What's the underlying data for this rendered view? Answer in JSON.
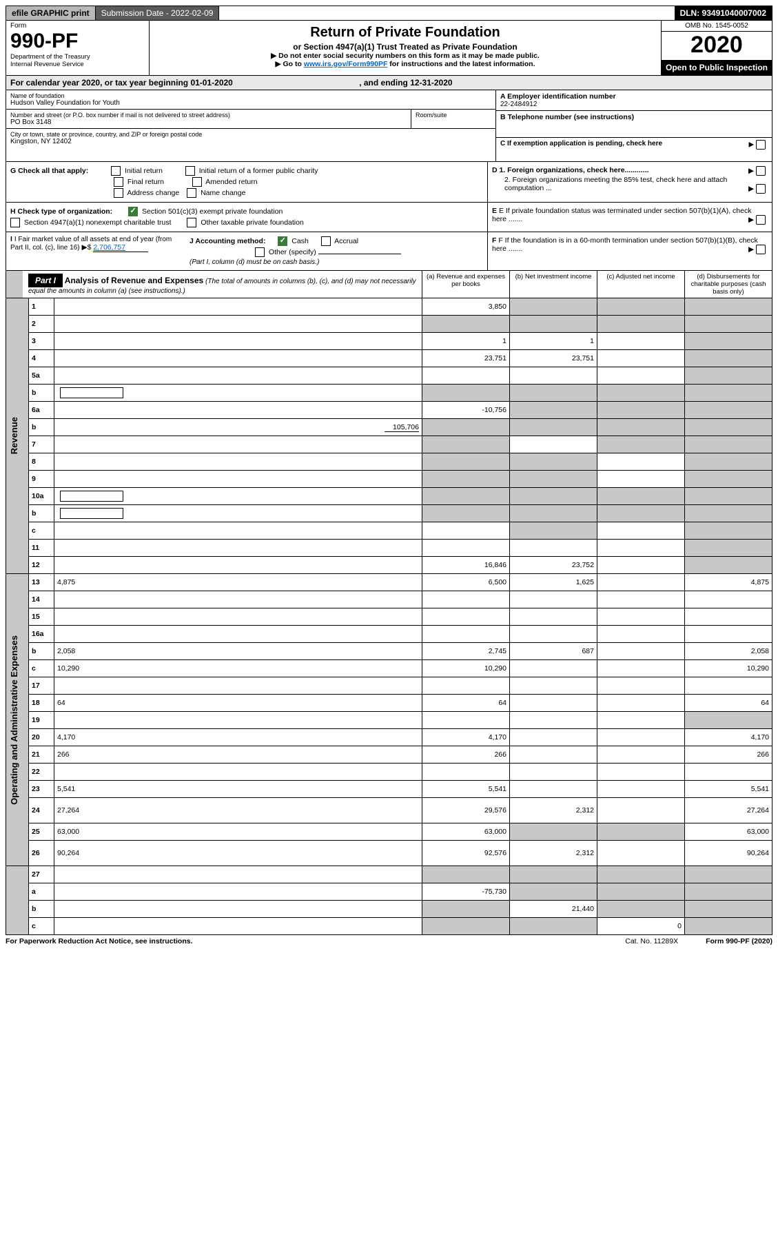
{
  "colors": {
    "black": "#000000",
    "white": "#ffffff",
    "grey_light": "#e8e8e8",
    "grey_mid": "#c8c8c8",
    "grey_dark": "#5a5a5a",
    "topbar_grey": "#b8b8b8",
    "link": "#0066cc",
    "check_green": "#3a7a3a"
  },
  "topbar": {
    "efile": "efile GRAPHIC print",
    "submission_label": "Submission Date - 2022-02-09",
    "dln": "DLN: 93491040007002"
  },
  "header": {
    "form_word": "Form",
    "form_number": "990-PF",
    "dept1": "Department of the Treasury",
    "dept2": "Internal Revenue Service",
    "title": "Return of Private Foundation",
    "subtitle": "or Section 4947(a)(1) Trust Treated as Private Foundation",
    "note1": "▶ Do not enter social security numbers on this form as it may be made public.",
    "note2_pre": "▶ Go to ",
    "note2_link": "www.irs.gov/Form990PF",
    "note2_post": " for instructions and the latest information.",
    "omb": "OMB No. 1545-0052",
    "year": "2020",
    "open": "Open to Public Inspection"
  },
  "calyear": {
    "text_pre": "For calendar year 2020, or tax year beginning ",
    "begin": "01-01-2020",
    "mid": " , and ending ",
    "end": "12-31-2020"
  },
  "info": {
    "name_label": "Name of foundation",
    "name": "Hudson Valley Foundation for Youth",
    "addr_label": "Number and street (or P.O. box number if mail is not delivered to street address)",
    "addr": "PO Box 3148",
    "room_label": "Room/suite",
    "city_label": "City or town, state or province, country, and ZIP or foreign postal code",
    "city": "Kingston, NY  12402",
    "a_label": "A Employer identification number",
    "a_val": "22-2484912",
    "b_label": "B Telephone number (see instructions)",
    "c_label": "C If exemption application is pending, check here",
    "d1": "D 1. Foreign organizations, check here............",
    "d2": "2. Foreign organizations meeting the 85% test, check here and attach computation ...",
    "e": "E If private foundation status was terminated under section 507(b)(1)(A), check here .......",
    "f": "F If the foundation is in a 60-month termination under section 507(b)(1)(B), check here .......",
    "g_label": "G Check all that apply:",
    "g_opts": [
      "Initial return",
      "Initial return of a former public charity",
      "Final return",
      "Amended return",
      "Address change",
      "Name change"
    ],
    "h_label": "H Check type of organization:",
    "h_opt1": "Section 501(c)(3) exempt private foundation",
    "h_opt2": "Section 4947(a)(1) nonexempt charitable trust",
    "h_opt3": "Other taxable private foundation",
    "i_label": "I Fair market value of all assets at end of year (from Part II, col. (c), line 16)",
    "i_val": "2,706,757",
    "j_label": "J Accounting method:",
    "j_cash": "Cash",
    "j_accrual": "Accrual",
    "j_other": "Other (specify)",
    "j_note": "(Part I, column (d) must be on cash basis.)"
  },
  "part1": {
    "label": "Part I",
    "title": "Analysis of Revenue and Expenses",
    "note": "(The total of amounts in columns (b), (c), and (d) may not necessarily equal the amounts in column (a) (see instructions).)",
    "col_a": "(a) Revenue and expenses per books",
    "col_b": "(b) Net investment income",
    "col_c": "(c) Adjusted net income",
    "col_d": "(d) Disbursements for charitable purposes (cash basis only)"
  },
  "sections": {
    "revenue": "Revenue",
    "expenses": "Operating and Administrative Expenses"
  },
  "rows": [
    {
      "n": "1",
      "d": "",
      "a": "3,850",
      "b": "",
      "c": "",
      "gb": true,
      "gc": true,
      "gd": true
    },
    {
      "n": "2",
      "d": "",
      "a": "",
      "b": "",
      "c": "",
      "gb": true,
      "gc": true,
      "gd": true,
      "ga": true,
      "html": true
    },
    {
      "n": "3",
      "d": "",
      "a": "1",
      "b": "1",
      "c": "",
      "gd": true
    },
    {
      "n": "4",
      "d": "",
      "a": "23,751",
      "b": "23,751",
      "c": "",
      "gd": true
    },
    {
      "n": "5a",
      "d": "",
      "a": "",
      "b": "",
      "c": "",
      "gd": true
    },
    {
      "n": "b",
      "d": "",
      "a": "",
      "b": "",
      "c": "",
      "ga": true,
      "gb": true,
      "gc": true,
      "gd": true,
      "inline": true
    },
    {
      "n": "6a",
      "d": "",
      "a": "-10,756",
      "b": "",
      "c": "",
      "gb": true,
      "gc": true,
      "gd": true
    },
    {
      "n": "b",
      "d": "",
      "a": "",
      "b": "",
      "c": "",
      "ga": true,
      "gb": true,
      "gc": true,
      "gd": true,
      "extra": "105,706"
    },
    {
      "n": "7",
      "d": "",
      "a": "",
      "b": "",
      "c": "",
      "ga": true,
      "gc": true,
      "gd": true
    },
    {
      "n": "8",
      "d": "",
      "a": "",
      "b": "",
      "c": "",
      "ga": true,
      "gb": true,
      "gd": true
    },
    {
      "n": "9",
      "d": "",
      "a": "",
      "b": "",
      "c": "",
      "ga": true,
      "gb": true,
      "gd": true
    },
    {
      "n": "10a",
      "d": "",
      "a": "",
      "b": "",
      "c": "",
      "ga": true,
      "gb": true,
      "gc": true,
      "gd": true,
      "inline": true
    },
    {
      "n": "b",
      "d": "",
      "a": "",
      "b": "",
      "c": "",
      "ga": true,
      "gb": true,
      "gc": true,
      "gd": true,
      "inline": true
    },
    {
      "n": "c",
      "d": "",
      "a": "",
      "b": "",
      "c": "",
      "gb": true,
      "gd": true
    },
    {
      "n": "11",
      "d": "",
      "a": "",
      "b": "",
      "c": "",
      "gd": true
    },
    {
      "n": "12",
      "d": "",
      "a": "16,846",
      "b": "23,752",
      "c": "",
      "gd": true,
      "html": true
    }
  ],
  "exp_rows": [
    {
      "n": "13",
      "d": "4,875",
      "a": "6,500",
      "b": "1,625",
      "c": ""
    },
    {
      "n": "14",
      "d": "",
      "a": "",
      "b": "",
      "c": ""
    },
    {
      "n": "15",
      "d": "",
      "a": "",
      "b": "",
      "c": ""
    },
    {
      "n": "16a",
      "d": "",
      "a": "",
      "b": "",
      "c": ""
    },
    {
      "n": "b",
      "d": "2,058",
      "a": "2,745",
      "b": "687",
      "c": ""
    },
    {
      "n": "c",
      "d": "10,290",
      "a": "10,290",
      "b": "",
      "c": ""
    },
    {
      "n": "17",
      "d": "",
      "a": "",
      "b": "",
      "c": ""
    },
    {
      "n": "18",
      "d": "64",
      "a": "64",
      "b": "",
      "c": ""
    },
    {
      "n": "19",
      "d": "",
      "a": "",
      "b": "",
      "c": "",
      "gd": true
    },
    {
      "n": "20",
      "d": "4,170",
      "a": "4,170",
      "b": "",
      "c": ""
    },
    {
      "n": "21",
      "d": "266",
      "a": "266",
      "b": "",
      "c": ""
    },
    {
      "n": "22",
      "d": "",
      "a": "",
      "b": "",
      "c": ""
    },
    {
      "n": "23",
      "d": "5,541",
      "a": "5,541",
      "b": "",
      "c": ""
    },
    {
      "n": "24",
      "d": "27,264",
      "a": "29,576",
      "b": "2,312",
      "c": "",
      "html": true,
      "tall": true
    },
    {
      "n": "25",
      "d": "63,000",
      "a": "63,000",
      "b": "",
      "c": "",
      "gb": true,
      "gc": true
    },
    {
      "n": "26",
      "d": "90,264",
      "a": "92,576",
      "b": "2,312",
      "c": "",
      "html": true,
      "tall": true
    }
  ],
  "net_rows": [
    {
      "n": "27",
      "d": "",
      "a": "",
      "b": "",
      "c": "",
      "ga": true,
      "gb": true,
      "gc": true,
      "gd": true
    },
    {
      "n": "a",
      "d": "",
      "a": "-75,730",
      "b": "",
      "c": "",
      "gb": true,
      "gc": true,
      "gd": true,
      "html": true
    },
    {
      "n": "b",
      "d": "",
      "a": "",
      "b": "21,440",
      "c": "",
      "ga": true,
      "gc": true,
      "gd": true,
      "html": true
    },
    {
      "n": "c",
      "d": "",
      "a": "",
      "b": "",
      "c": "0",
      "ga": true,
      "gb": true,
      "gd": true,
      "html": true
    }
  ],
  "footer": {
    "left": "For Paperwork Reduction Act Notice, see instructions.",
    "mid": "Cat. No. 11289X",
    "right": "Form 990-PF (2020)"
  }
}
